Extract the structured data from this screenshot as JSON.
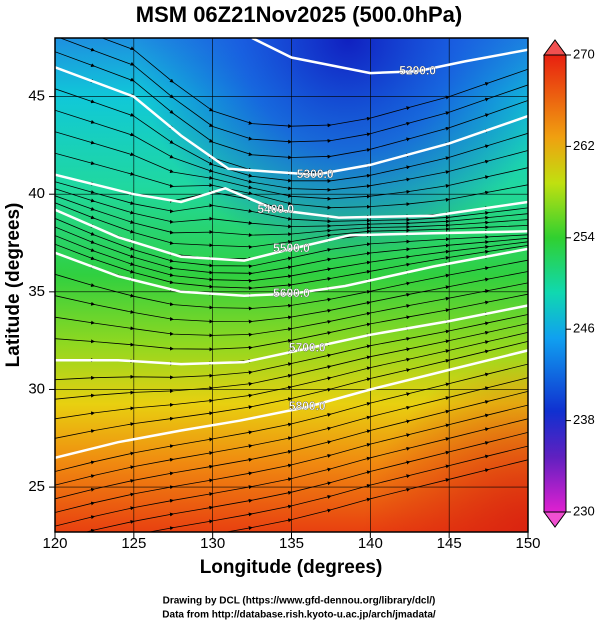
{
  "title": "MSM 06Z21Nov2025 (500.0hPa)",
  "x_label": "Longitude (degrees)",
  "y_label": "Latitude  (degrees)",
  "xlim": [
    120,
    150
  ],
  "ylim": [
    22.7,
    48
  ],
  "xticks": [
    120,
    125,
    130,
    135,
    140,
    145,
    150
  ],
  "yticks": [
    25,
    30,
    35,
    40,
    45
  ],
  "colorbar": {
    "lim": [
      230,
      270
    ],
    "ticks": [
      230,
      238,
      246,
      254,
      262,
      270
    ]
  },
  "contours": [
    {
      "label": "5200.0",
      "x": [
        132.5,
        135,
        140,
        143,
        146,
        150
      ],
      "y": [
        48,
        47,
        46.2,
        46.3,
        46.8,
        47.4
      ]
    },
    {
      "label": "5300.0",
      "x": [
        120,
        125,
        128,
        131,
        136.5,
        140,
        145,
        150
      ],
      "y": [
        46.5,
        45,
        43,
        41.3,
        41,
        41.5,
        42.6,
        44
      ]
    },
    {
      "label": "5400.0",
      "x": [
        120,
        125,
        128,
        130.8,
        134,
        138,
        144,
        150
      ],
      "y": [
        41,
        40,
        39.6,
        40.3,
        39.2,
        38.8,
        38.9,
        39.6
      ]
    },
    {
      "label": "5500.0",
      "x": [
        120,
        124,
        128,
        132,
        135,
        138.7,
        144,
        150
      ],
      "y": [
        39.2,
        37.8,
        36.8,
        36.6,
        37.2,
        37.9,
        38,
        38.1
      ]
    },
    {
      "label": "5600.0",
      "x": [
        120,
        124,
        128,
        132,
        135,
        138.4,
        144,
        150
      ],
      "y": [
        37,
        35.8,
        35,
        34.8,
        34.9,
        35.3,
        36.3,
        37.2
      ]
    },
    {
      "label": "5700.0",
      "x": [
        120,
        124,
        128,
        132,
        136,
        140,
        145,
        150
      ],
      "y": [
        31.5,
        31.5,
        31.3,
        31.4,
        32.1,
        32.8,
        33.5,
        34.3
      ]
    },
    {
      "label": "5800.0",
      "x": [
        120,
        124,
        128,
        131.7,
        136,
        140,
        145,
        150
      ],
      "y": [
        26.5,
        27.3,
        27.9,
        28.4,
        29.1,
        30,
        31,
        32
      ]
    }
  ],
  "credits": [
    "Drawing by DCL (https://www.gfd-dennou.org/library/dcl/)",
    "Data from http://database.rish.kyoto-u.ac.jp/arch/jmadata/"
  ]
}
